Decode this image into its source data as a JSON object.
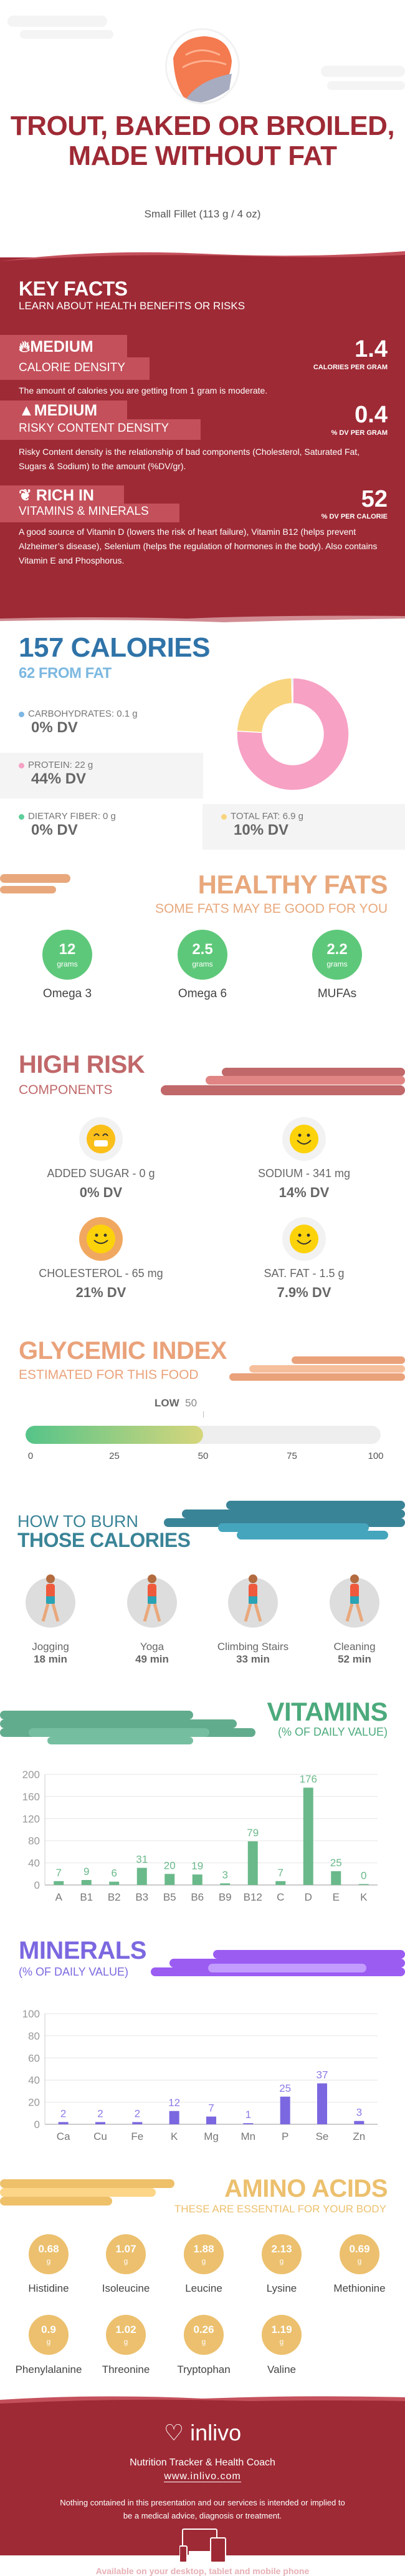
{
  "header": {
    "title": "TROUT, BAKED OR BROILED, MADE WITHOUT FAT",
    "serving": "Small Fillet (113 g / 4 oz)"
  },
  "key_facts": {
    "title": "KEY FACTS",
    "subtitle": "LEARN ABOUT HEALTH BENEFITS OR RISKS",
    "items": [
      {
        "icon": "flame-icon",
        "level": "MEDIUM",
        "name": "CALORIE DENSITY",
        "value": "1.4",
        "unit": "CALORIES PER GRAM",
        "description": "The amount of calories you are getting from 1 gram is moderate."
      },
      {
        "icon": "warning-icon",
        "level": "MEDIUM",
        "name": "RISKY CONTENT DENSITY",
        "value": "0.4",
        "unit": "% DV PER GRAM",
        "description": "Risky Content density is the relationship of bad components (Cholesterol, Saturated Fat, Sugars & Sodium) to the amount (%DV/gr)."
      },
      {
        "icon": "leaf-icon",
        "level": "RICH  IN",
        "name": "VITAMINS & MINERALS",
        "value": "52",
        "unit": "% DV PER CALORIE",
        "description": "A good source of Vitamin D (lowers the risk of heart failure), Vitamin B12 (helps prevent Alzheimer’s disease), Selenium (helps the regulation of hormones in the body). Also contains Vitamin E and Phosphorus."
      }
    ]
  },
  "calories": {
    "title": "157 CALORIES",
    "from_fat": "62 FROM FAT",
    "macros": [
      {
        "label": "CARBOHYDRATES: 0.1 g",
        "dv": "0% DV",
        "color": "#7fb6e2"
      },
      {
        "label": "PROTEIN: 22 g",
        "dv": "44% DV",
        "color": "#f7a1c4"
      },
      {
        "label": "DIETARY FIBER: 0 g",
        "dv": "0% DV",
        "color": "#5ecf9a"
      },
      {
        "label": "TOTAL FAT: 6.9 g",
        "dv": "10% DV",
        "color": "#f8d47e"
      }
    ]
  },
  "healthy_fats": {
    "title": "HEALTHY FATS",
    "subtitle": "SOME FATS MAY BE GOOD FOR YOU",
    "unit": "grams",
    "items": [
      {
        "value": "12",
        "label": "Omega 3"
      },
      {
        "value": "2.5",
        "label": "Omega 6"
      },
      {
        "value": "2.2",
        "label": "MUFAs"
      }
    ]
  },
  "high_risk": {
    "title": "HIGH RISK",
    "subtitle": "COMPONENTS",
    "items": [
      {
        "label": "ADDED SUGAR - 0 g",
        "dv": "0% DV",
        "icon": "grinning-face-icon"
      },
      {
        "label": "SODIUM - 341 mg",
        "dv": "14% DV",
        "icon": "smiley-face-icon"
      },
      {
        "label": "CHOLESTEROL - 65 mg",
        "dv": "21% DV",
        "icon": "smiley-face-icon"
      },
      {
        "label": "SAT. FAT - 1.5 g",
        "dv": "7.9% DV",
        "icon": "smiley-face-icon"
      }
    ]
  },
  "glycemic": {
    "title": "GLYCEMIC INDEX",
    "subtitle": "ESTIMATED FOR THIS FOOD",
    "level": "LOW",
    "value": 50,
    "value_label": "50",
    "scale_max": 100,
    "ticks": [
      "0",
      "25",
      "50",
      "75",
      "100"
    ]
  },
  "burn": {
    "title_line1": "HOW TO BURN",
    "title_line2": "THOSE CALORIES",
    "activities": [
      {
        "name": "Jogging",
        "time": "18 min",
        "icon": "jogging-icon"
      },
      {
        "name": "Yoga",
        "time": "49 min",
        "icon": "yoga-icon"
      },
      {
        "name": "Climbing Stairs",
        "time": "33 min",
        "icon": "stairs-icon"
      },
      {
        "name": "Cleaning",
        "time": "52 min",
        "icon": "cleaning-icon"
      }
    ]
  },
  "vitamins": {
    "title": "VITAMINS",
    "subtitle": "(% OF DAILY VALUE)"
  },
  "minerals": {
    "title": "MINERALS",
    "subtitle": "(% OF DAILY VALUE)"
  },
  "chart_data": [
    {
      "type": "bar",
      "categories": [
        "A",
        "B1",
        "B2",
        "B3",
        "B5",
        "B6",
        "B9",
        "B12",
        "C",
        "D",
        "E",
        "K"
      ],
      "values": [
        7,
        9,
        6,
        31,
        20,
        19,
        3,
        79,
        7,
        176,
        25,
        0
      ],
      "ylim": [
        0,
        200
      ],
      "yticks": [
        "0",
        "40",
        "80",
        "120",
        "160",
        "200"
      ],
      "grid": true,
      "color": "#6ab98a",
      "label_color": "#6ab98a"
    },
    {
      "type": "bar",
      "categories": [
        "Ca",
        "Cu",
        "Fe",
        "K",
        "Mg",
        "Mn",
        "P",
        "Se",
        "Zn"
      ],
      "values": [
        2,
        2,
        2,
        12,
        7,
        1,
        25,
        37,
        3
      ],
      "ylim": [
        0,
        100
      ],
      "yticks": [
        "0",
        "20",
        "40",
        "60",
        "80",
        "100"
      ],
      "grid": true,
      "color": "#7b68e0",
      "label_color": "#8a7ae6"
    },
    {
      "type": "pie",
      "donut": true,
      "categories": [
        "Protein",
        "Total Fat",
        "Carbohydrates"
      ],
      "values": [
        22,
        6.9,
        0.1
      ],
      "colors": [
        "#f7a1c4",
        "#f8d47e",
        "#7fb6e2"
      ]
    }
  ],
  "amino": {
    "title": "AMINO ACIDS",
    "subtitle": "THESE ARE ESSENTIAL FOR YOUR BODY",
    "unit": "g",
    "items": [
      {
        "value": "0.68",
        "label": "Histidine"
      },
      {
        "value": "1.07",
        "label": "Isoleucine"
      },
      {
        "value": "1.88",
        "label": "Leucine"
      },
      {
        "value": "2.13",
        "label": "Lysine"
      },
      {
        "value": "0.69",
        "label": "Methionine"
      },
      {
        "value": "0.9",
        "label": "Phenylalanine"
      },
      {
        "value": "1.02",
        "label": "Threonine"
      },
      {
        "value": "0.26",
        "label": "Tryptophan"
      },
      {
        "value": "1.19",
        "label": "Valine"
      }
    ]
  },
  "footer": {
    "logo": "inlivo",
    "tagline": "Nutrition Tracker & Health Coach",
    "url": "www.inlivo.com",
    "disclaimer": "Nothing contained in this presentation and our services is intended or implied to be a medical advice, diagnosis or treatment.",
    "available": "Available on your desktop, tablet and mobile phone"
  },
  "colors": {
    "brand_red": "#9e2a35",
    "calories_blue": "#2f73a8",
    "healthy_fats": "#e8a87c",
    "high_risk": "#c0686a",
    "glycemic": "#eaa27a",
    "burn_teal": "#3a8497",
    "vitamins_green": "#4caa7c",
    "minerals_purple": "#7b68e0",
    "amino_yellow": "#ecc06e"
  }
}
